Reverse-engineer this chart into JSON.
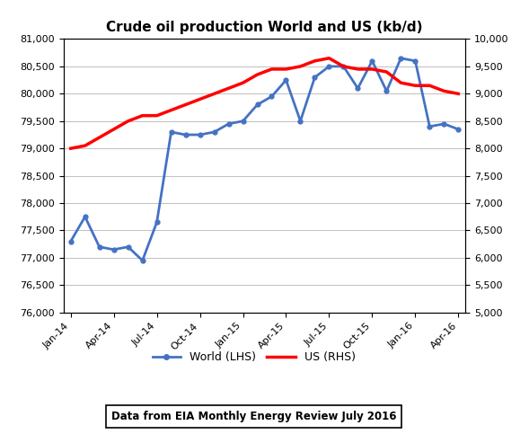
{
  "title": "Crude oil production World and US (kb/d)",
  "world_color": "#4472C4",
  "us_color": "#FF0000",
  "lhs_ylim": [
    76000,
    81000
  ],
  "rhs_ylim": [
    5000,
    10000
  ],
  "lhs_yticks": [
    76000,
    76500,
    77000,
    77500,
    78000,
    78500,
    79000,
    79500,
    80000,
    80500,
    81000
  ],
  "rhs_yticks": [
    5000,
    5500,
    6000,
    6500,
    7000,
    7500,
    8000,
    8500,
    9000,
    9500,
    10000
  ],
  "annotation": "Data from EIA Monthly Energy Review July 2016",
  "legend_world": "World (LHS)",
  "legend_us": "US (RHS)",
  "background_color": "#FFFFFF",
  "grid_color": "#C0C0C0",
  "world_data": [
    77300,
    77750,
    77200,
    77150,
    77200,
    76950,
    77650,
    79300,
    79250,
    79250,
    79300,
    79450,
    79500,
    79800,
    79950,
    80250,
    79500,
    80300,
    80500,
    80500,
    80100,
    80600,
    80050,
    80650,
    80600,
    79400,
    79450,
    79350
  ],
  "us_data": [
    8000,
    8050,
    8200,
    8350,
    8500,
    8600,
    8600,
    8700,
    8800,
    8900,
    9000,
    9100,
    9200,
    9350,
    9450,
    9450,
    9500,
    9600,
    9650,
    9500,
    9450,
    9450,
    9400,
    9200,
    9150,
    9150,
    9050,
    9000
  ],
  "x_tick_positions": [
    0,
    3,
    6,
    9,
    12,
    15,
    18,
    21,
    24,
    27
  ],
  "x_tick_labels": [
    "Jan-14",
    "Apr-14",
    "Jul-14",
    "Oct-14",
    "Jan-15",
    "Apr-15",
    "Jul-15",
    "Oct-15",
    "Jan-16",
    "Apr-16"
  ]
}
